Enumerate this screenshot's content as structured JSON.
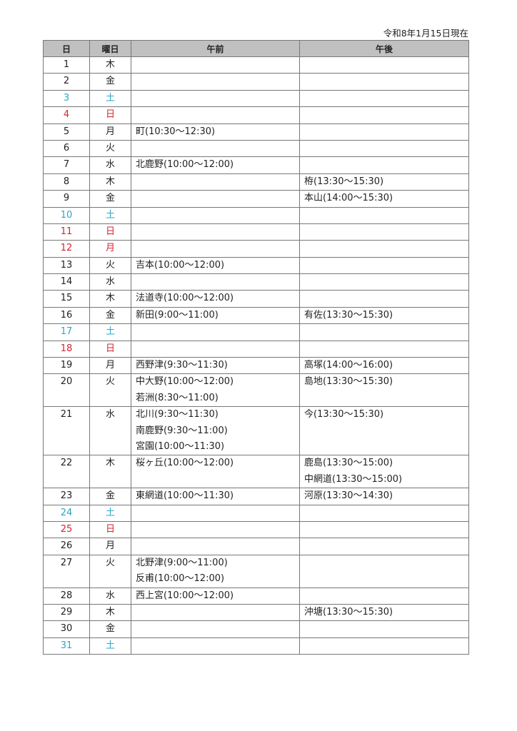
{
  "as_of": "令和8年1月15日現在",
  "colors": {
    "saturday": "#2ba6c6",
    "holiday": "#d42330",
    "header_bg": "#c0c0c0"
  },
  "headers": {
    "day": "日",
    "weekday": "曜日",
    "am": "午前",
    "pm": "午後"
  },
  "rows": [
    {
      "day": "1",
      "weekday": "木",
      "am": [],
      "pm": []
    },
    {
      "day": "2",
      "weekday": "金",
      "am": [],
      "pm": []
    },
    {
      "day": "3",
      "weekday": "土",
      "kind": "saturday",
      "am": [],
      "pm": []
    },
    {
      "day": "4",
      "weekday": "日",
      "kind": "holiday",
      "am": [],
      "pm": []
    },
    {
      "day": "5",
      "weekday": "月",
      "am": [
        "町(10:30～12:30)"
      ],
      "pm": []
    },
    {
      "day": "6",
      "weekday": "火",
      "am": [],
      "pm": []
    },
    {
      "day": "7",
      "weekday": "水",
      "am": [
        "北鹿野(10:00～12:00)"
      ],
      "pm": []
    },
    {
      "day": "8",
      "weekday": "木",
      "am": [],
      "pm": [
        "栫(13:30～15:30)"
      ]
    },
    {
      "day": "9",
      "weekday": "金",
      "am": [],
      "pm": [
        "本山(14:00～15:30)"
      ]
    },
    {
      "day": "10",
      "weekday": "土",
      "kind": "saturday",
      "am": [],
      "pm": []
    },
    {
      "day": "11",
      "weekday": "日",
      "kind": "holiday",
      "am": [],
      "pm": []
    },
    {
      "day": "12",
      "weekday": "月",
      "kind": "holiday",
      "am": [],
      "pm": []
    },
    {
      "day": "13",
      "weekday": "火",
      "am": [
        "吉本(10:00～12:00)"
      ],
      "pm": []
    },
    {
      "day": "14",
      "weekday": "水",
      "am": [],
      "pm": []
    },
    {
      "day": "15",
      "weekday": "木",
      "am": [
        "法道寺(10:00～12:00)"
      ],
      "pm": []
    },
    {
      "day": "16",
      "weekday": "金",
      "am": [
        "新田(9:00～11:00)"
      ],
      "pm": [
        "有佐(13:30～15:30)"
      ]
    },
    {
      "day": "17",
      "weekday": "土",
      "kind": "saturday",
      "am": [],
      "pm": []
    },
    {
      "day": "18",
      "weekday": "日",
      "kind": "holiday",
      "am": [],
      "pm": []
    },
    {
      "day": "19",
      "weekday": "月",
      "am": [
        "西野津(9:30～11:30)"
      ],
      "pm": [
        "高塚(14:00～16:00)"
      ]
    },
    {
      "day": "20",
      "weekday": "火",
      "am": [
        "中大野(10:00～12:00)",
        "若洲(8:30～11:00)"
      ],
      "pm": [
        "島地(13:30～15:30)"
      ]
    },
    {
      "day": "21",
      "weekday": "水",
      "am": [
        "北川(9:30～11:30)",
        "南鹿野(9:30～11:00)",
        "宮園(10:00～11:30)"
      ],
      "pm": [
        "今(13:30～15:30)"
      ]
    },
    {
      "day": "22",
      "weekday": "木",
      "am": [
        "桜ヶ丘(10:00～12:00)"
      ],
      "pm": [
        "鹿島(13:30～15:00)",
        "中網道(13:30～15:00)"
      ]
    },
    {
      "day": "23",
      "weekday": "金",
      "am": [
        "東網道(10:00～11:30)"
      ],
      "pm": [
        "河原(13:30～14:30)"
      ]
    },
    {
      "day": "24",
      "weekday": "土",
      "kind": "saturday",
      "am": [],
      "pm": []
    },
    {
      "day": "25",
      "weekday": "日",
      "kind": "holiday",
      "am": [],
      "pm": []
    },
    {
      "day": "26",
      "weekday": "月",
      "am": [],
      "pm": []
    },
    {
      "day": "27",
      "weekday": "火",
      "am": [
        "北野津(9:00～11:00)",
        "反甫(10:00～12:00)"
      ],
      "pm": []
    },
    {
      "day": "28",
      "weekday": "水",
      "am": [
        "西上宮(10:00～12:00)"
      ],
      "pm": []
    },
    {
      "day": "29",
      "weekday": "木",
      "am": [],
      "pm": [
        "沖塘(13:30～15:30)"
      ]
    },
    {
      "day": "30",
      "weekday": "金",
      "am": [],
      "pm": []
    },
    {
      "day": "31",
      "weekday": "土",
      "kind": "saturday",
      "am": [],
      "pm": []
    }
  ]
}
